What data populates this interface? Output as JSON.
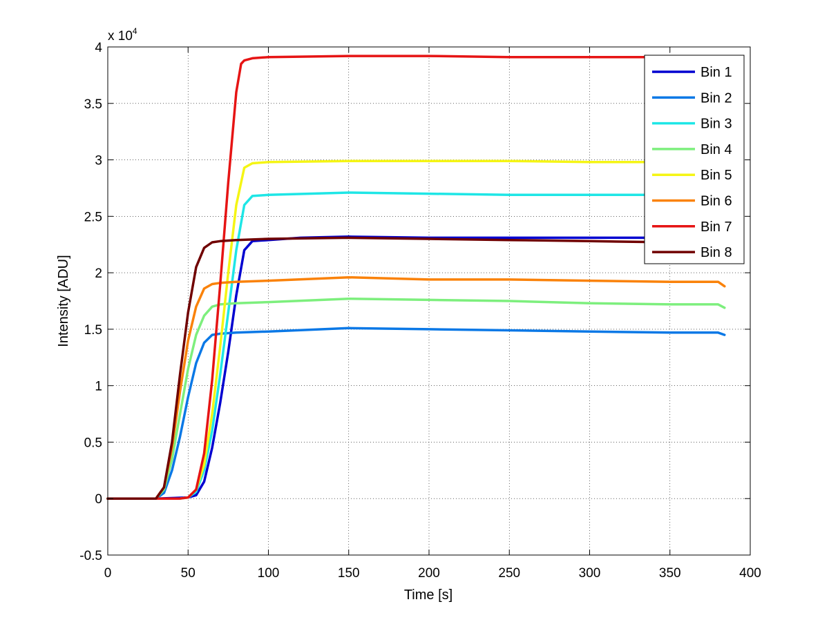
{
  "chart_data": {
    "type": "line",
    "title": "",
    "xlabel": "Time [s]",
    "ylabel": "Intensity [ADU]",
    "y_exponent_label": "x 10",
    "y_exponent_power": "4",
    "xlim": [
      0,
      400
    ],
    "ylim": [
      -0.5,
      4
    ],
    "x_ticks": [
      0,
      50,
      100,
      150,
      200,
      250,
      300,
      350,
      400
    ],
    "x_tick_labels": [
      "0",
      "50",
      "100",
      "150",
      "200",
      "250",
      "300",
      "350",
      "400"
    ],
    "y_ticks": [
      -0.5,
      0,
      0.5,
      1,
      1.5,
      2,
      2.5,
      3,
      3.5,
      4
    ],
    "y_tick_labels": [
      "-0.5",
      "0",
      "0.5",
      "1",
      "1.5",
      "2",
      "2.5",
      "3",
      "3.5",
      "4"
    ],
    "grid": true,
    "legend_position": "top-right",
    "series": [
      {
        "name": "Bin 1",
        "color": "#0000d0",
        "x": [
          0,
          30,
          50,
          55,
          60,
          65,
          70,
          75,
          80,
          85,
          90,
          100,
          120,
          150,
          200,
          250,
          300,
          350,
          384
        ],
        "values": [
          0,
          0,
          0.01,
          0.03,
          0.15,
          0.45,
          0.85,
          1.3,
          1.8,
          2.2,
          2.28,
          2.29,
          2.31,
          2.32,
          2.31,
          2.31,
          2.31,
          2.31,
          2.31
        ]
      },
      {
        "name": "Bin 2",
        "color": "#0a78e6",
        "x": [
          0,
          30,
          35,
          40,
          45,
          50,
          55,
          60,
          65,
          70,
          80,
          100,
          150,
          200,
          250,
          300,
          350,
          380,
          384
        ],
        "values": [
          0,
          0,
          0.05,
          0.25,
          0.55,
          0.9,
          1.2,
          1.38,
          1.45,
          1.46,
          1.47,
          1.48,
          1.51,
          1.5,
          1.49,
          1.48,
          1.47,
          1.47,
          1.45
        ]
      },
      {
        "name": "Bin 3",
        "color": "#1ee6e6",
        "x": [
          0,
          45,
          50,
          55,
          60,
          65,
          70,
          75,
          80,
          85,
          90,
          100,
          150,
          200,
          250,
          300,
          350,
          384
        ],
        "values": [
          0,
          0,
          0.01,
          0.06,
          0.25,
          0.6,
          1.1,
          1.65,
          2.2,
          2.6,
          2.68,
          2.69,
          2.71,
          2.7,
          2.69,
          2.69,
          2.69,
          2.69
        ]
      },
      {
        "name": "Bin 4",
        "color": "#7def7d",
        "x": [
          0,
          30,
          35,
          40,
          45,
          50,
          55,
          60,
          65,
          70,
          80,
          100,
          150,
          200,
          250,
          300,
          350,
          380,
          384
        ],
        "values": [
          0,
          0,
          0.08,
          0.35,
          0.75,
          1.15,
          1.45,
          1.62,
          1.7,
          1.72,
          1.73,
          1.74,
          1.77,
          1.76,
          1.75,
          1.73,
          1.72,
          1.72,
          1.69
        ]
      },
      {
        "name": "Bin 5",
        "color": "#f5f514",
        "x": [
          0,
          45,
          50,
          55,
          60,
          65,
          70,
          75,
          80,
          85,
          90,
          100,
          150,
          200,
          250,
          300,
          350,
          384
        ],
        "values": [
          0,
          0,
          0.01,
          0.08,
          0.3,
          0.75,
          1.35,
          2.0,
          2.6,
          2.93,
          2.97,
          2.98,
          2.99,
          2.99,
          2.99,
          2.98,
          2.98,
          2.98
        ]
      },
      {
        "name": "Bin 6",
        "color": "#fa820a",
        "x": [
          0,
          30,
          35,
          40,
          45,
          50,
          55,
          60,
          65,
          70,
          80,
          100,
          150,
          200,
          250,
          300,
          350,
          380,
          384
        ],
        "values": [
          0,
          0,
          0.1,
          0.45,
          0.95,
          1.4,
          1.7,
          1.86,
          1.9,
          1.91,
          1.92,
          1.93,
          1.96,
          1.94,
          1.94,
          1.93,
          1.92,
          1.92,
          1.88
        ]
      },
      {
        "name": "Bin 7",
        "color": "#e61414",
        "x": [
          0,
          45,
          50,
          55,
          60,
          65,
          70,
          75,
          80,
          83,
          85,
          90,
          100,
          150,
          200,
          250,
          300,
          350,
          384
        ],
        "values": [
          0,
          0,
          0.01,
          0.08,
          0.4,
          1.05,
          1.9,
          2.8,
          3.6,
          3.85,
          3.88,
          3.9,
          3.91,
          3.92,
          3.92,
          3.91,
          3.91,
          3.91,
          3.91
        ]
      },
      {
        "name": "Bin 8",
        "color": "#700000",
        "x": [
          0,
          30,
          35,
          40,
          45,
          50,
          55,
          60,
          65,
          70,
          80,
          100,
          150,
          200,
          250,
          300,
          350,
          384
        ],
        "values": [
          0,
          0,
          0.1,
          0.5,
          1.1,
          1.65,
          2.05,
          2.22,
          2.27,
          2.28,
          2.29,
          2.3,
          2.31,
          2.3,
          2.29,
          2.28,
          2.27,
          2.26
        ]
      }
    ]
  }
}
